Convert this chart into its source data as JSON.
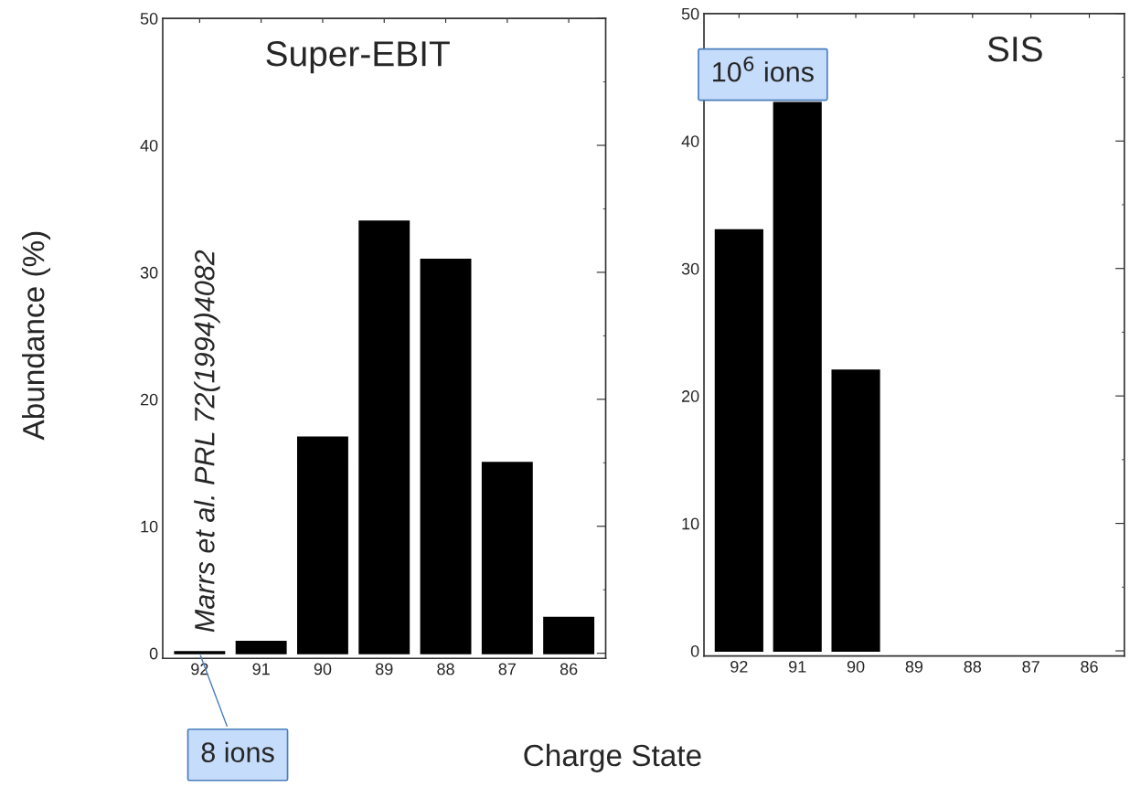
{
  "chart_data": [
    {
      "type": "bar",
      "title": "Super-EBIT",
      "ylabel": "Abundance (%)",
      "xlabel": "Charge State",
      "categories": [
        "92",
        "91",
        "90",
        "89",
        "88",
        "87",
        "86"
      ],
      "values": [
        0.1,
        0.9,
        17,
        34,
        31,
        15,
        2.8
      ],
      "color": "#000000",
      "ylim": [
        -0.4,
        50
      ],
      "yticks": [
        0,
        10,
        20,
        30,
        40,
        50
      ],
      "grid": false,
      "annotations": [
        "Marrs et al. PRL 72(1994)4082",
        {
          "text": "8 ions",
          "x": "92",
          "y": 0
        }
      ]
    },
    {
      "type": "bar",
      "title": "SIS",
      "categories": [
        "92",
        "91",
        "90",
        "89",
        "88",
        "87",
        "86"
      ],
      "values": [
        33,
        43,
        22,
        null,
        null,
        null,
        null
      ],
      "color": "#000000",
      "ylim": [
        -0.4,
        50
      ],
      "yticks": [
        0,
        10,
        20,
        30,
        40,
        50
      ],
      "grid": false,
      "annotations": [
        "10$^{6}$ ions"
      ]
    }
  ]
}
